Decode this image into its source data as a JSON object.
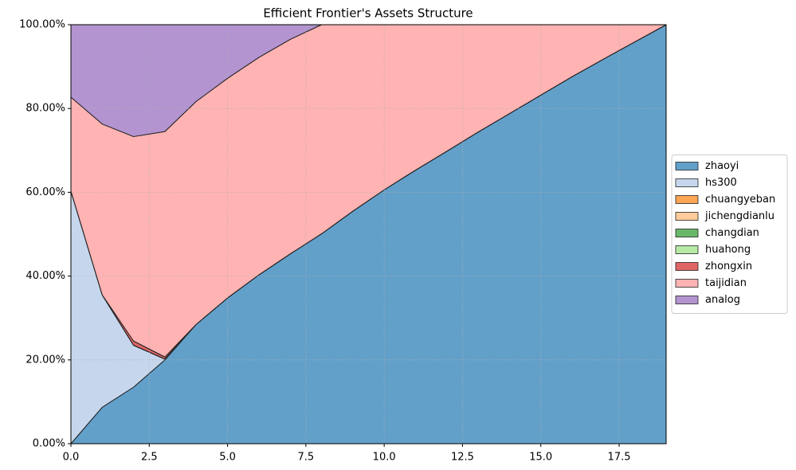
{
  "chart_data": {
    "type": "stacked-area",
    "title": "Efficient Frontier's Assets Structure",
    "x": [
      0,
      1,
      2,
      3,
      4,
      5,
      6,
      7,
      8,
      9,
      10,
      11,
      12,
      13,
      14,
      15,
      16,
      17,
      18,
      19
    ],
    "series": [
      {
        "name": "zhaoyi",
        "color": "#62a0ca",
        "values": [
          0,
          8.7,
          13.5,
          20,
          28.5,
          34.8,
          40.3,
          45.3,
          50.1,
          55.5,
          60.6,
          65.3,
          69.8,
          74.4,
          78.8,
          83.2,
          87.6,
          91.8,
          95.9,
          100
        ]
      },
      {
        "name": "hs300",
        "color": "#c6d7ed",
        "values": [
          60.3,
          26.8,
          10,
          0.2,
          0,
          0,
          0,
          0,
          0,
          0,
          0,
          0,
          0,
          0,
          0,
          0,
          0,
          0,
          0,
          0
        ]
      },
      {
        "name": "chuangyeban",
        "color": "#ffa556",
        "values": [
          0,
          0,
          0,
          0,
          0,
          0,
          0,
          0,
          0,
          0,
          0,
          0,
          0,
          0,
          0,
          0,
          0,
          0,
          0,
          0
        ]
      },
      {
        "name": "jichengdianlu",
        "color": "#ffcb9a",
        "values": [
          0,
          0,
          0,
          0,
          0,
          0,
          0,
          0,
          0,
          0,
          0,
          0,
          0,
          0,
          0,
          0,
          0,
          0,
          0,
          0
        ]
      },
      {
        "name": "changdian",
        "color": "#69b869",
        "values": [
          0,
          0,
          0,
          0,
          0,
          0,
          0,
          0,
          0,
          0,
          0,
          0,
          0,
          0,
          0,
          0,
          0,
          0,
          0,
          0
        ]
      },
      {
        "name": "huahong",
        "color": "#b7e9a6",
        "values": [
          0,
          0,
          0,
          0,
          0,
          0,
          0,
          0,
          0,
          0,
          0,
          0,
          0,
          0,
          0,
          0,
          0,
          0,
          0,
          0
        ]
      },
      {
        "name": "zhongxin",
        "color": "#e06666",
        "values": [
          0,
          0,
          1,
          0.5,
          0,
          0,
          0,
          0,
          0,
          0,
          0,
          0,
          0,
          0,
          0,
          0,
          0,
          0,
          0,
          0
        ]
      },
      {
        "name": "taijidian",
        "color": "#ffb3b3",
        "values": [
          22.4,
          40.8,
          48.8,
          53.8,
          53.2,
          52.4,
          51.9,
          51.2,
          49.9,
          44.5,
          39.4,
          34.7,
          30.2,
          25.6,
          21.2,
          16.8,
          12.4,
          8.2,
          4.1,
          0
        ]
      },
      {
        "name": "analog",
        "color": "#b394d0",
        "values": [
          17.3,
          23.7,
          26.7,
          25.5,
          18.3,
          12.8,
          7.8,
          3.5,
          0,
          0,
          0,
          0,
          0,
          0,
          0,
          0,
          0,
          0,
          0,
          0
        ]
      }
    ],
    "xlim": [
      0,
      19
    ],
    "xticks": [
      {
        "value": 0,
        "label": "0.0"
      },
      2.5,
      {
        "value": 5,
        "label": "5.0"
      },
      7.5,
      {
        "value": 10,
        "label": "10.0"
      },
      12.5,
      {
        "value": 15,
        "label": "15.0"
      },
      17.5
    ],
    "ylim": [
      0,
      100
    ],
    "yticks": [
      {
        "value": 0,
        "label": "0.00%"
      },
      {
        "value": 20,
        "label": "20.00%"
      },
      {
        "value": 40,
        "label": "40.00%"
      },
      {
        "value": 60,
        "label": "60.00%"
      },
      {
        "value": 80,
        "label": "80.00%"
      },
      {
        "value": 100,
        "label": "100.00%"
      }
    ],
    "grid": true,
    "legend": "right"
  }
}
